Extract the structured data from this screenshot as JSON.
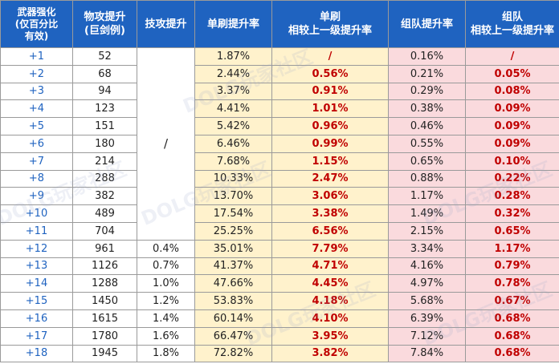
{
  "headers": {
    "col1": [
      "武器强化",
      "(仅百分比",
      "有效)"
    ],
    "col2": [
      "物攻提升",
      "(巨剑例)"
    ],
    "col3": "技攻提升",
    "col4": "单刷提升率",
    "col5": [
      "单刷",
      "相较上一级提升率"
    ],
    "col6": "组队提升率",
    "col7": [
      "组队",
      "相较上一级提升率"
    ]
  },
  "skill_slash": "/",
  "watermark": "DOLG玩家社区",
  "rows": [
    {
      "level": "+1",
      "atk": "52",
      "skill": "",
      "solo": "1.87%",
      "solo_inc": "/",
      "team": "0.16%",
      "team_inc": "/"
    },
    {
      "level": "+2",
      "atk": "68",
      "skill": "",
      "solo": "2.44%",
      "solo_inc": "0.56%",
      "team": "0.21%",
      "team_inc": "0.05%"
    },
    {
      "level": "+3",
      "atk": "94",
      "skill": "",
      "solo": "3.37%",
      "solo_inc": "0.91%",
      "team": "0.29%",
      "team_inc": "0.08%"
    },
    {
      "level": "+4",
      "atk": "123",
      "skill": "",
      "solo": "4.41%",
      "solo_inc": "1.01%",
      "team": "0.38%",
      "team_inc": "0.09%"
    },
    {
      "level": "+5",
      "atk": "151",
      "skill": "",
      "solo": "5.42%",
      "solo_inc": "0.96%",
      "team": "0.46%",
      "team_inc": "0.09%"
    },
    {
      "level": "+6",
      "atk": "180",
      "skill": "",
      "solo": "6.46%",
      "solo_inc": "0.99%",
      "team": "0.55%",
      "team_inc": "0.09%"
    },
    {
      "level": "+7",
      "atk": "214",
      "skill": "",
      "solo": "7.68%",
      "solo_inc": "1.15%",
      "team": "0.65%",
      "team_inc": "0.10%"
    },
    {
      "level": "+8",
      "atk": "288",
      "skill": "",
      "solo": "10.33%",
      "solo_inc": "2.47%",
      "team": "0.88%",
      "team_inc": "0.22%"
    },
    {
      "level": "+9",
      "atk": "382",
      "skill": "",
      "solo": "13.70%",
      "solo_inc": "3.06%",
      "team": "1.17%",
      "team_inc": "0.28%"
    },
    {
      "level": "+10",
      "atk": "489",
      "skill": "",
      "solo": "17.54%",
      "solo_inc": "3.38%",
      "team": "1.49%",
      "team_inc": "0.32%"
    },
    {
      "level": "+11",
      "atk": "704",
      "skill": "",
      "solo": "25.25%",
      "solo_inc": "6.56%",
      "team": "2.15%",
      "team_inc": "0.65%"
    },
    {
      "level": "+12",
      "atk": "961",
      "skill": "0.4%",
      "solo": "35.01%",
      "solo_inc": "7.79%",
      "team": "3.34%",
      "team_inc": "1.17%"
    },
    {
      "level": "+13",
      "atk": "1126",
      "skill": "0.7%",
      "solo": "41.37%",
      "solo_inc": "4.71%",
      "team": "4.16%",
      "team_inc": "0.79%"
    },
    {
      "level": "+14",
      "atk": "1288",
      "skill": "1.0%",
      "solo": "47.66%",
      "solo_inc": "4.45%",
      "team": "4.97%",
      "team_inc": "0.78%"
    },
    {
      "level": "+15",
      "atk": "1450",
      "skill": "1.2%",
      "solo": "53.83%",
      "solo_inc": "4.18%",
      "team": "5.68%",
      "team_inc": "0.67%"
    },
    {
      "level": "+16",
      "atk": "1615",
      "skill": "1.4%",
      "solo": "60.14%",
      "solo_inc": "4.10%",
      "team": "6.39%",
      "team_inc": "0.68%"
    },
    {
      "level": "+17",
      "atk": "1780",
      "skill": "1.6%",
      "solo": "66.47%",
      "solo_inc": "3.95%",
      "team": "7.12%",
      "team_inc": "0.68%"
    },
    {
      "level": "+18",
      "atk": "1945",
      "skill": "1.8%",
      "solo": "72.82%",
      "solo_inc": "3.82%",
      "team": "7.84%",
      "team_inc": "0.68%"
    }
  ]
}
